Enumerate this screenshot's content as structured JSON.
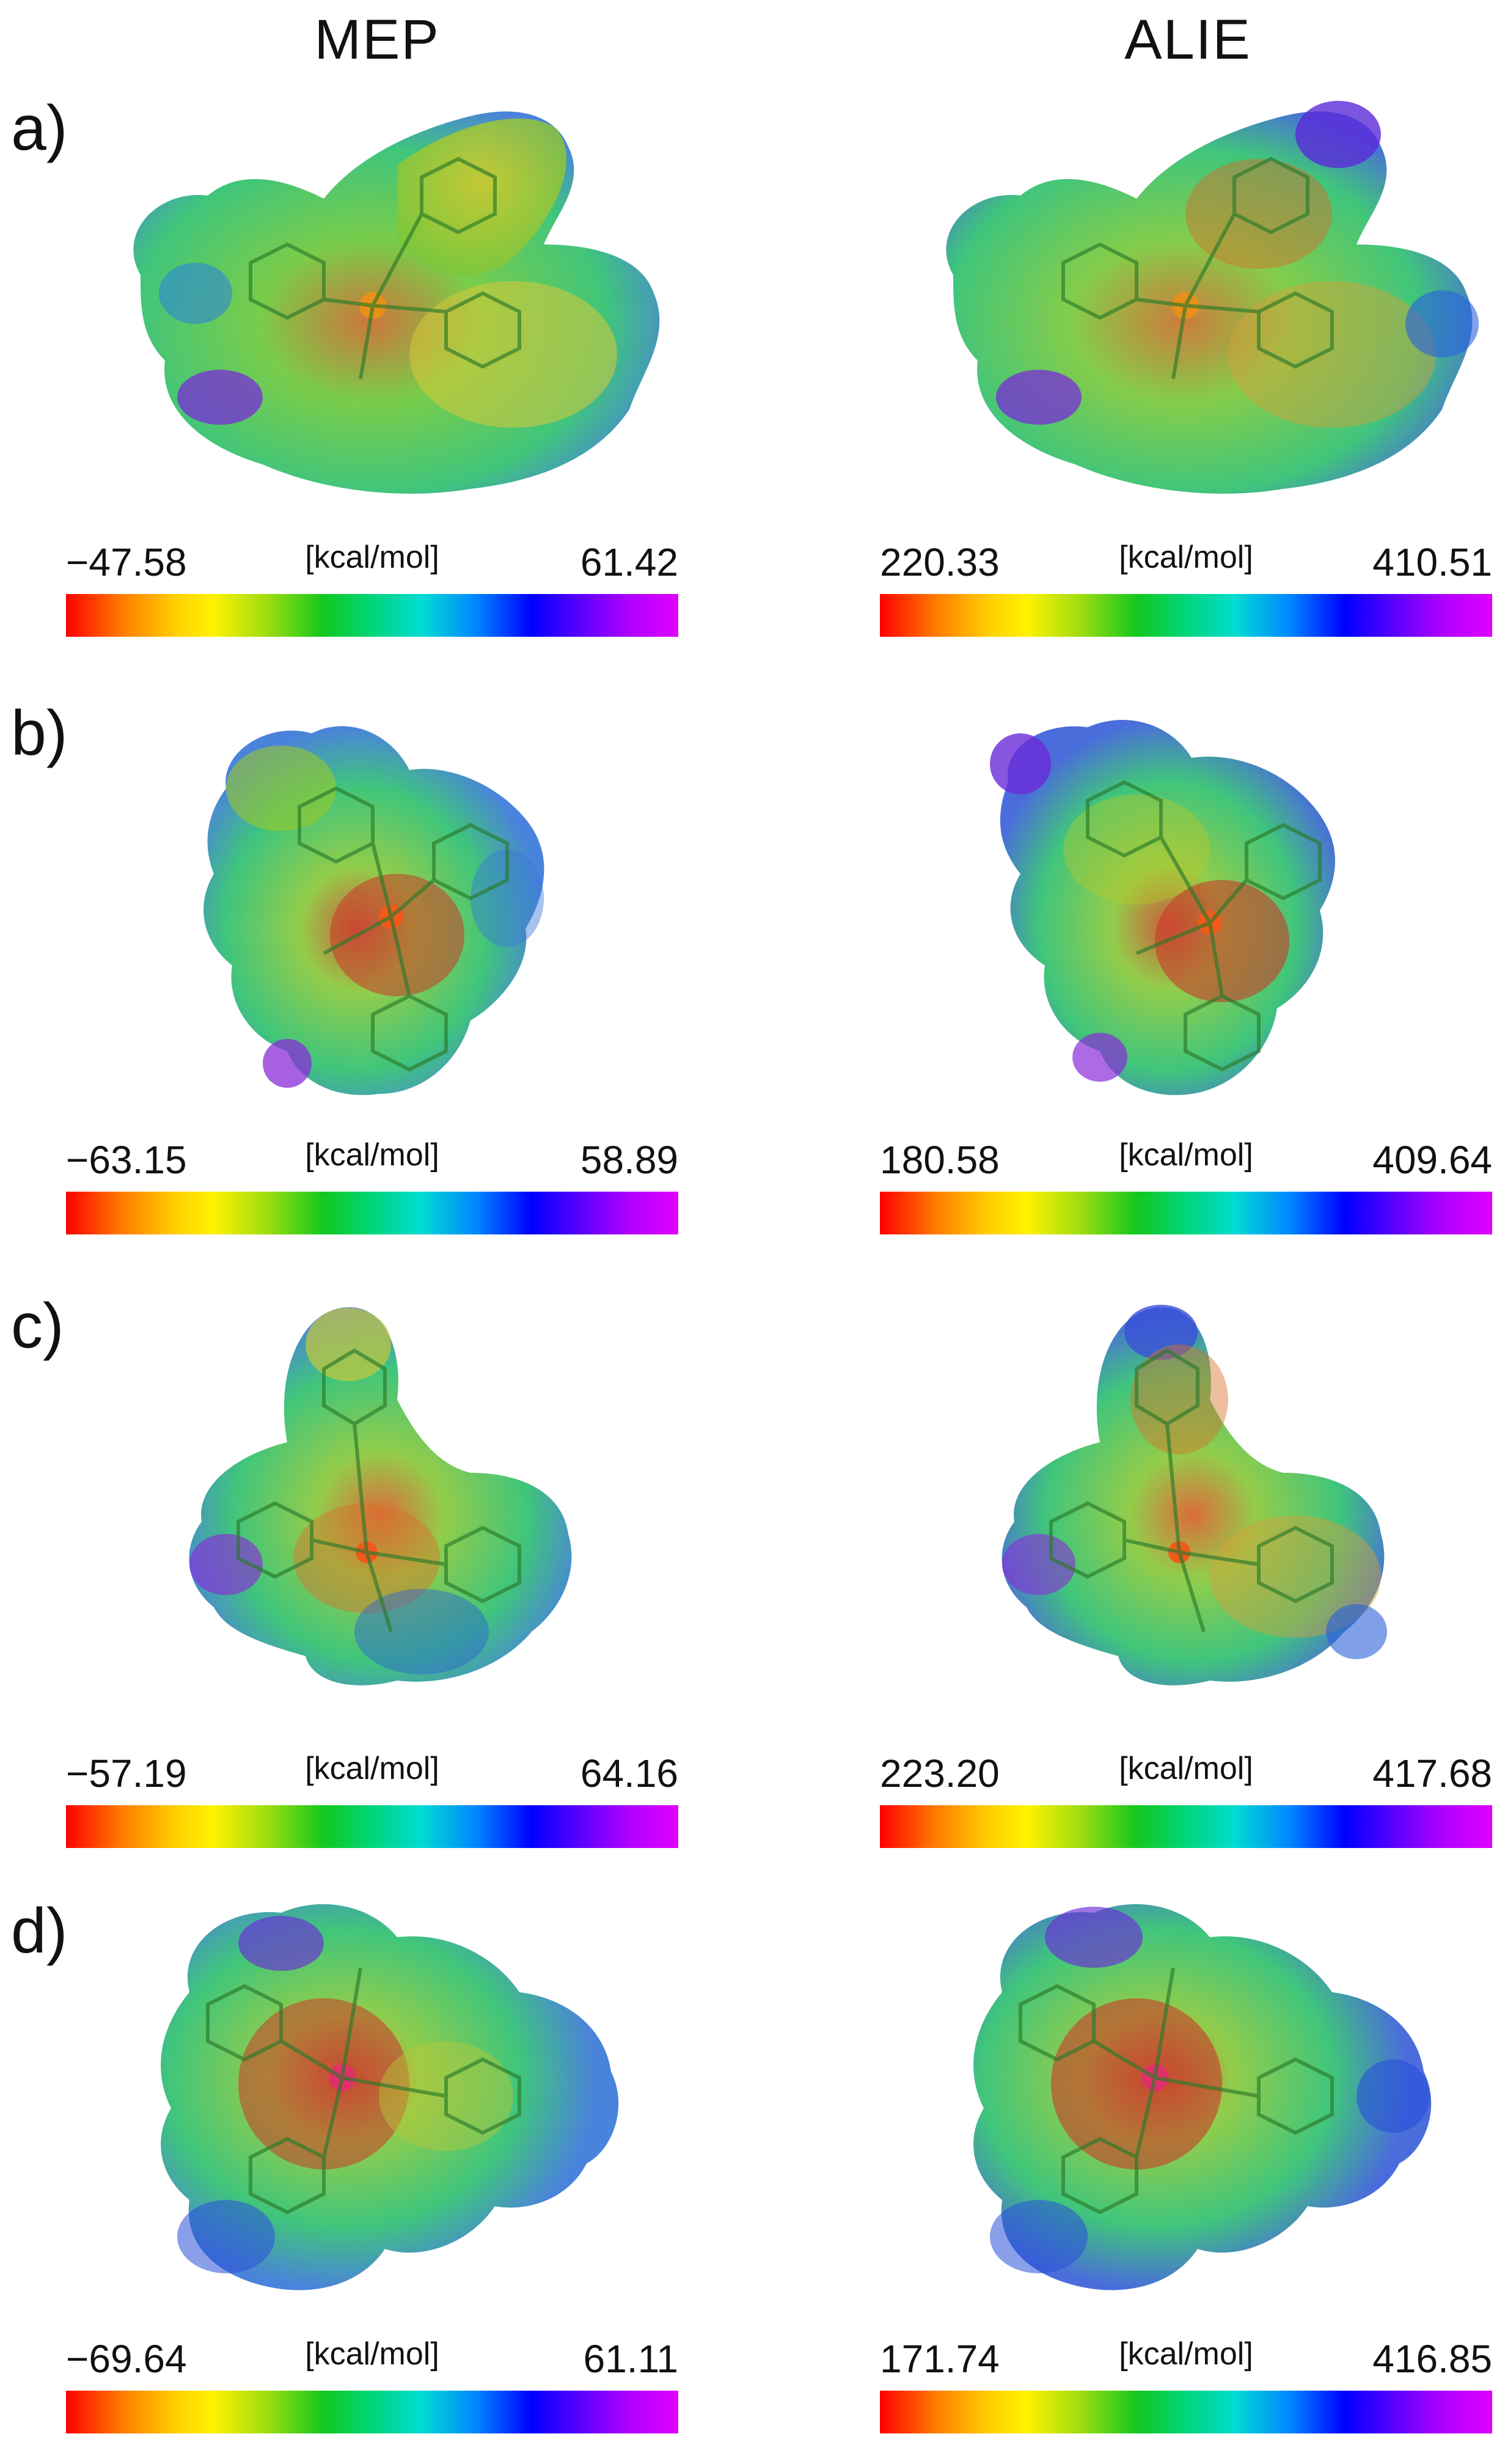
{
  "columns": {
    "mep": "MEP",
    "alie": "ALIE"
  },
  "panels": [
    {
      "label": "a)",
      "mep": {
        "min": "−47.58",
        "unit": "[kcal/mol]",
        "max": "61.42"
      },
      "alie": {
        "min": "220.33",
        "unit": "[kcal/mol]",
        "max": "410.51"
      }
    },
    {
      "label": "b)",
      "mep": {
        "min": "−63.15",
        "unit": "[kcal/mol]",
        "max": "58.89"
      },
      "alie": {
        "min": "180.58",
        "unit": "[kcal/mol]",
        "max": "409.64"
      }
    },
    {
      "label": "c)",
      "mep": {
        "min": "−57.19",
        "unit": "[kcal/mol]",
        "max": "64.16"
      },
      "alie": {
        "min": "223.20",
        "unit": "[kcal/mol]",
        "max": "417.68"
      }
    },
    {
      "label": "d)",
      "mep": {
        "min": "−69.64",
        "unit": "[kcal/mol]",
        "max": "61.11"
      },
      "alie": {
        "min": "171.74",
        "unit": "[kcal/mol]",
        "max": "416.85"
      }
    }
  ],
  "colors": {
    "scale_low": "#ff0000",
    "scale_mid": "#12c81e",
    "scale_high": "#e000ff",
    "surface_green": "#3ec85a",
    "surface_yellow": "#d8d020",
    "surface_blue": "#3d70e0",
    "surface_purple": "#9a30e0",
    "metal_center": "#e0306a"
  }
}
